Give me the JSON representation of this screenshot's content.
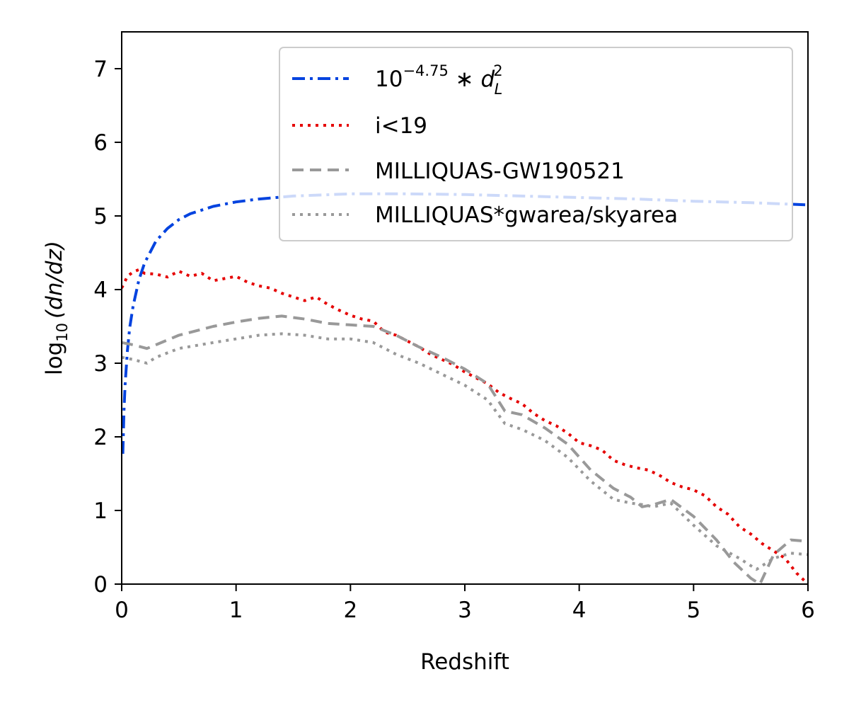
{
  "chart_data": {
    "type": "line",
    "title": "",
    "xlabel": "Redshift",
    "ylabel": {
      "prefix": "log",
      "subscript": "10",
      "body": "(dn/dz)"
    },
    "xlim": [
      0,
      6
    ],
    "ylim": [
      0,
      7.5
    ],
    "xticks": [
      "0",
      "1",
      "2",
      "3",
      "4",
      "5",
      "6"
    ],
    "yticks": [
      "0",
      "1",
      "2",
      "3",
      "4",
      "5",
      "6",
      "7"
    ],
    "grid": false,
    "legend_position": "top-right",
    "series": [
      {
        "name": "10^{-4.75} * d_L^2",
        "legend": {
          "base": "10",
          "exponent": "−4.75",
          "op": " ∗ ",
          "var": "d",
          "var_sub": "L",
          "var_sup": "2"
        },
        "color": "#0343df",
        "style": "dashdot",
        "x": [
          0.01,
          0.02,
          0.03,
          0.05,
          0.07,
          0.1,
          0.15,
          0.2,
          0.3,
          0.4,
          0.5,
          0.6,
          0.8,
          1.0,
          1.2,
          1.5,
          2.0,
          2.5,
          3.0,
          3.5,
          4.0,
          4.5,
          5.0,
          5.5,
          6.0
        ],
        "y": [
          1.77,
          2.35,
          2.71,
          3.17,
          3.48,
          3.78,
          4.13,
          4.36,
          4.66,
          4.83,
          4.95,
          5.03,
          5.13,
          5.19,
          5.23,
          5.27,
          5.3,
          5.3,
          5.29,
          5.27,
          5.25,
          5.23,
          5.2,
          5.18,
          5.15
        ]
      },
      {
        "name": "i<19",
        "color": "#e50000",
        "style": "dotted",
        "x": [
          0.0,
          0.05,
          0.1,
          0.15,
          0.2,
          0.3,
          0.4,
          0.5,
          0.6,
          0.7,
          0.8,
          0.9,
          1.0,
          1.1,
          1.2,
          1.3,
          1.4,
          1.5,
          1.6,
          1.7,
          1.8,
          1.9,
          2.0,
          2.1,
          2.2,
          2.3,
          2.4,
          2.5,
          2.6,
          2.7,
          2.8,
          2.9,
          3.0,
          3.1,
          3.2,
          3.3,
          3.4,
          3.5,
          3.6,
          3.7,
          3.8,
          3.9,
          4.0,
          4.1,
          4.2,
          4.3,
          4.4,
          4.5,
          4.6,
          4.7,
          4.8,
          4.9,
          5.0,
          5.1,
          5.2,
          5.3,
          5.4,
          5.5,
          5.6,
          5.7,
          5.8,
          5.9,
          6.0
        ],
        "y": [
          4.02,
          4.18,
          4.24,
          4.27,
          4.22,
          4.21,
          4.17,
          4.25,
          4.18,
          4.22,
          4.12,
          4.15,
          4.18,
          4.1,
          4.05,
          4.02,
          3.95,
          3.9,
          3.85,
          3.9,
          3.8,
          3.72,
          3.65,
          3.6,
          3.57,
          3.42,
          3.38,
          3.3,
          3.22,
          3.12,
          3.05,
          2.98,
          2.88,
          2.8,
          2.72,
          2.6,
          2.52,
          2.45,
          2.32,
          2.22,
          2.15,
          2.05,
          1.92,
          1.88,
          1.82,
          1.68,
          1.62,
          1.58,
          1.55,
          1.48,
          1.38,
          1.32,
          1.28,
          1.2,
          1.05,
          0.95,
          0.78,
          0.68,
          0.55,
          0.45,
          0.35,
          0.15,
          0.0
        ]
      },
      {
        "name": "MILLIQUAS-GW190521",
        "color": "#999999",
        "style": "dashed",
        "x": [
          0.0,
          0.1,
          0.22,
          0.3,
          0.5,
          0.8,
          1.0,
          1.2,
          1.4,
          1.6,
          1.8,
          2.0,
          2.2,
          2.4,
          2.6,
          2.8,
          3.0,
          3.2,
          3.35,
          3.5,
          3.7,
          3.9,
          4.1,
          4.3,
          4.45,
          4.55,
          4.65,
          4.8,
          5.0,
          5.2,
          5.35,
          5.5,
          5.58,
          5.7,
          5.85,
          6.0
        ],
        "y": [
          3.28,
          3.25,
          3.2,
          3.25,
          3.38,
          3.5,
          3.56,
          3.61,
          3.64,
          3.6,
          3.54,
          3.52,
          3.5,
          3.38,
          3.22,
          3.08,
          2.92,
          2.72,
          2.35,
          2.3,
          2.12,
          1.9,
          1.55,
          1.3,
          1.18,
          1.05,
          1.08,
          1.15,
          0.92,
          0.6,
          0.3,
          0.08,
          0.0,
          0.4,
          0.6,
          0.58
        ]
      },
      {
        "name": "MILLIQUAS*gwarea/skyarea",
        "color": "#999999",
        "style": "dotted",
        "x": [
          0.0,
          0.1,
          0.22,
          0.3,
          0.5,
          0.8,
          1.0,
          1.2,
          1.4,
          1.6,
          1.8,
          2.0,
          2.2,
          2.4,
          2.6,
          2.8,
          3.0,
          3.2,
          3.35,
          3.5,
          3.7,
          3.9,
          4.1,
          4.3,
          4.45,
          4.55,
          4.65,
          4.8,
          5.0,
          5.2,
          5.4,
          5.55,
          5.7,
          5.85,
          6.0
        ],
        "y": [
          3.08,
          3.05,
          3.0,
          3.08,
          3.2,
          3.28,
          3.33,
          3.38,
          3.4,
          3.38,
          3.33,
          3.33,
          3.28,
          3.12,
          3.0,
          2.85,
          2.7,
          2.5,
          2.18,
          2.1,
          1.95,
          1.72,
          1.4,
          1.15,
          1.1,
          1.08,
          1.05,
          1.1,
          0.8,
          0.52,
          0.35,
          0.2,
          0.35,
          0.42,
          0.4
        ]
      }
    ]
  }
}
